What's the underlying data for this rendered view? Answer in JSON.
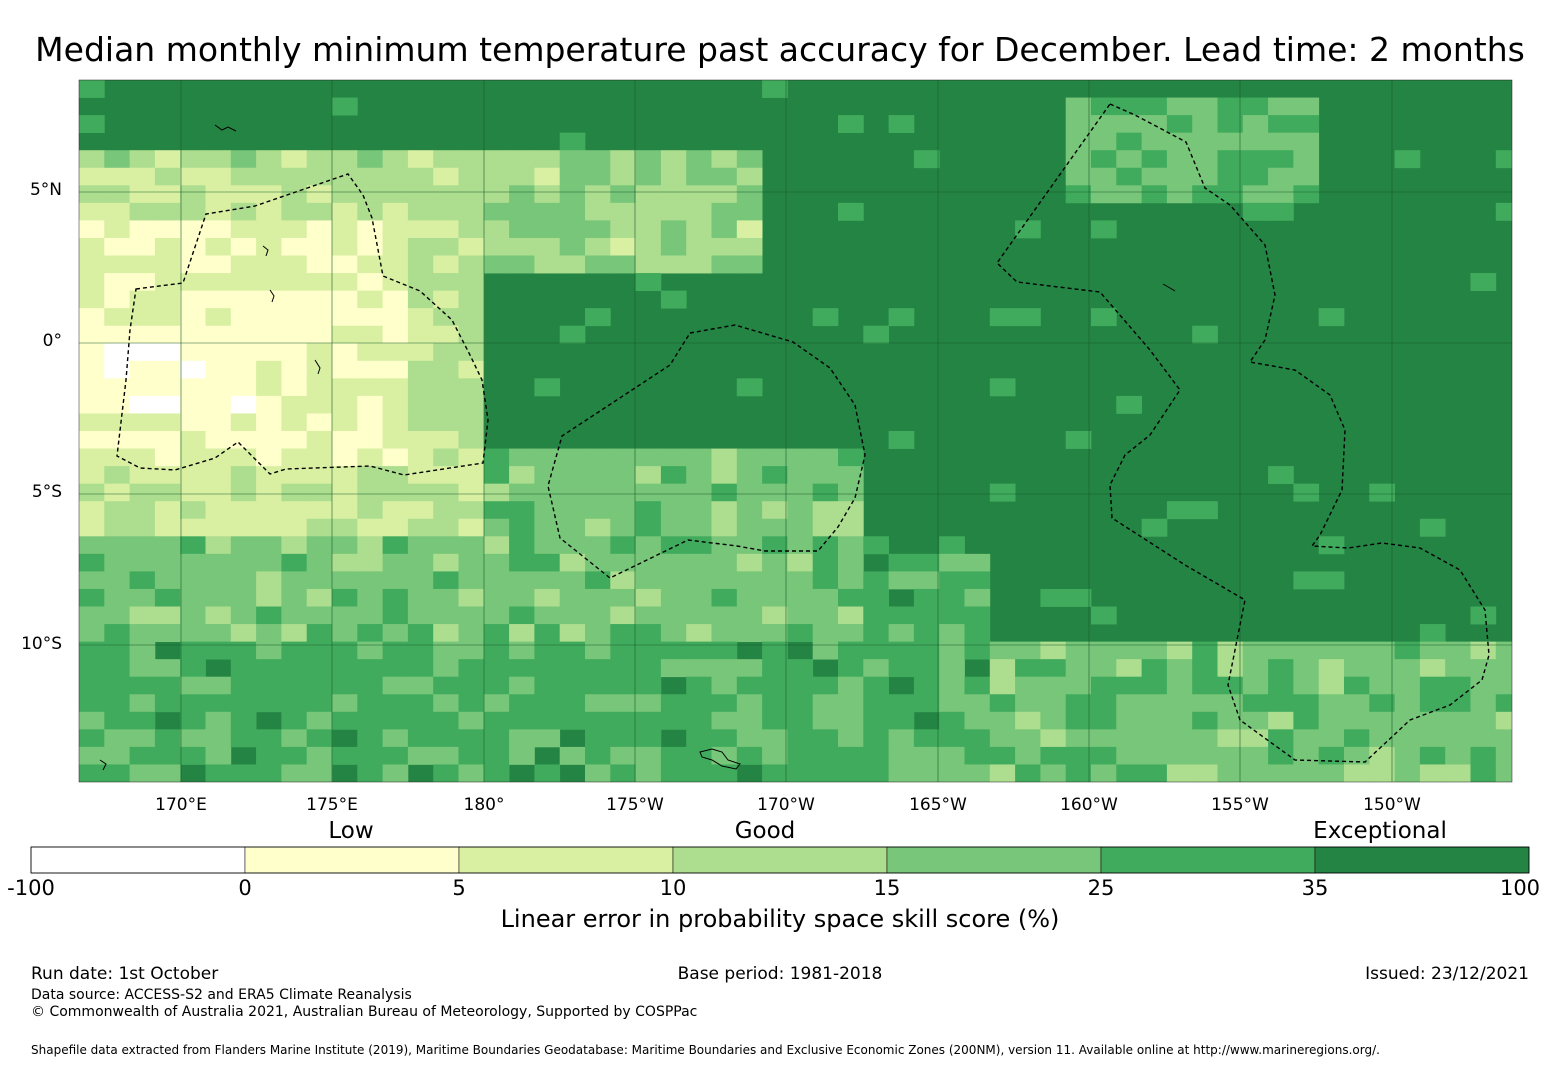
{
  "title": "Median monthly minimum temperature past accuracy for December. Lead time: 2 months",
  "map": {
    "lat_labels": [
      "5°N",
      "0°",
      "5°S",
      "10°S"
    ],
    "lon_labels": [
      "170°E",
      "175°E",
      "180°",
      "175°W",
      "170°W",
      "165°W",
      "160°W",
      "155°W",
      "150°W"
    ],
    "colors": {
      "below_0": "#ffffff",
      "0_5": "#ffffcc",
      "5_10": "#d9f0a3",
      "10_15": "#addd8e",
      "15_25": "#78c679",
      "25_35": "#41ab5d",
      "35_100": "#238443",
      "very_high": "#1f7a3b"
    }
  },
  "colorbar": {
    "categories": [
      "Low",
      "Good",
      "Exceptional"
    ],
    "ticks": [
      "-100",
      "0",
      "5",
      "10",
      "15",
      "25",
      "35",
      "100"
    ],
    "colors": [
      "#ffffff",
      "#ffffcc",
      "#d9f0a3",
      "#addd8e",
      "#78c679",
      "#41ab5d",
      "#238443"
    ],
    "label": "Linear error in probability space skill score (%)"
  },
  "footer": {
    "run_date": "Run date: 1st October",
    "base_period": "Base period: 1981-2018",
    "issued": "Issued: 23/12/2021",
    "data_source": "Data source: ACCESS-S2 and ERA5 Climate Reanalysis",
    "copyright": "© Commonwealth of Australia 2021, Australian Bureau of Meteorology, Supported by COSPPac",
    "shapefile": "Shapefile data extracted from Flanders Marine Institute (2019), Maritime Boundaries Geodatabase: Maritime Boundaries and Exclusive Economic Zones (200NM), version 11. Available online at http://www.marineregions.org/."
  }
}
